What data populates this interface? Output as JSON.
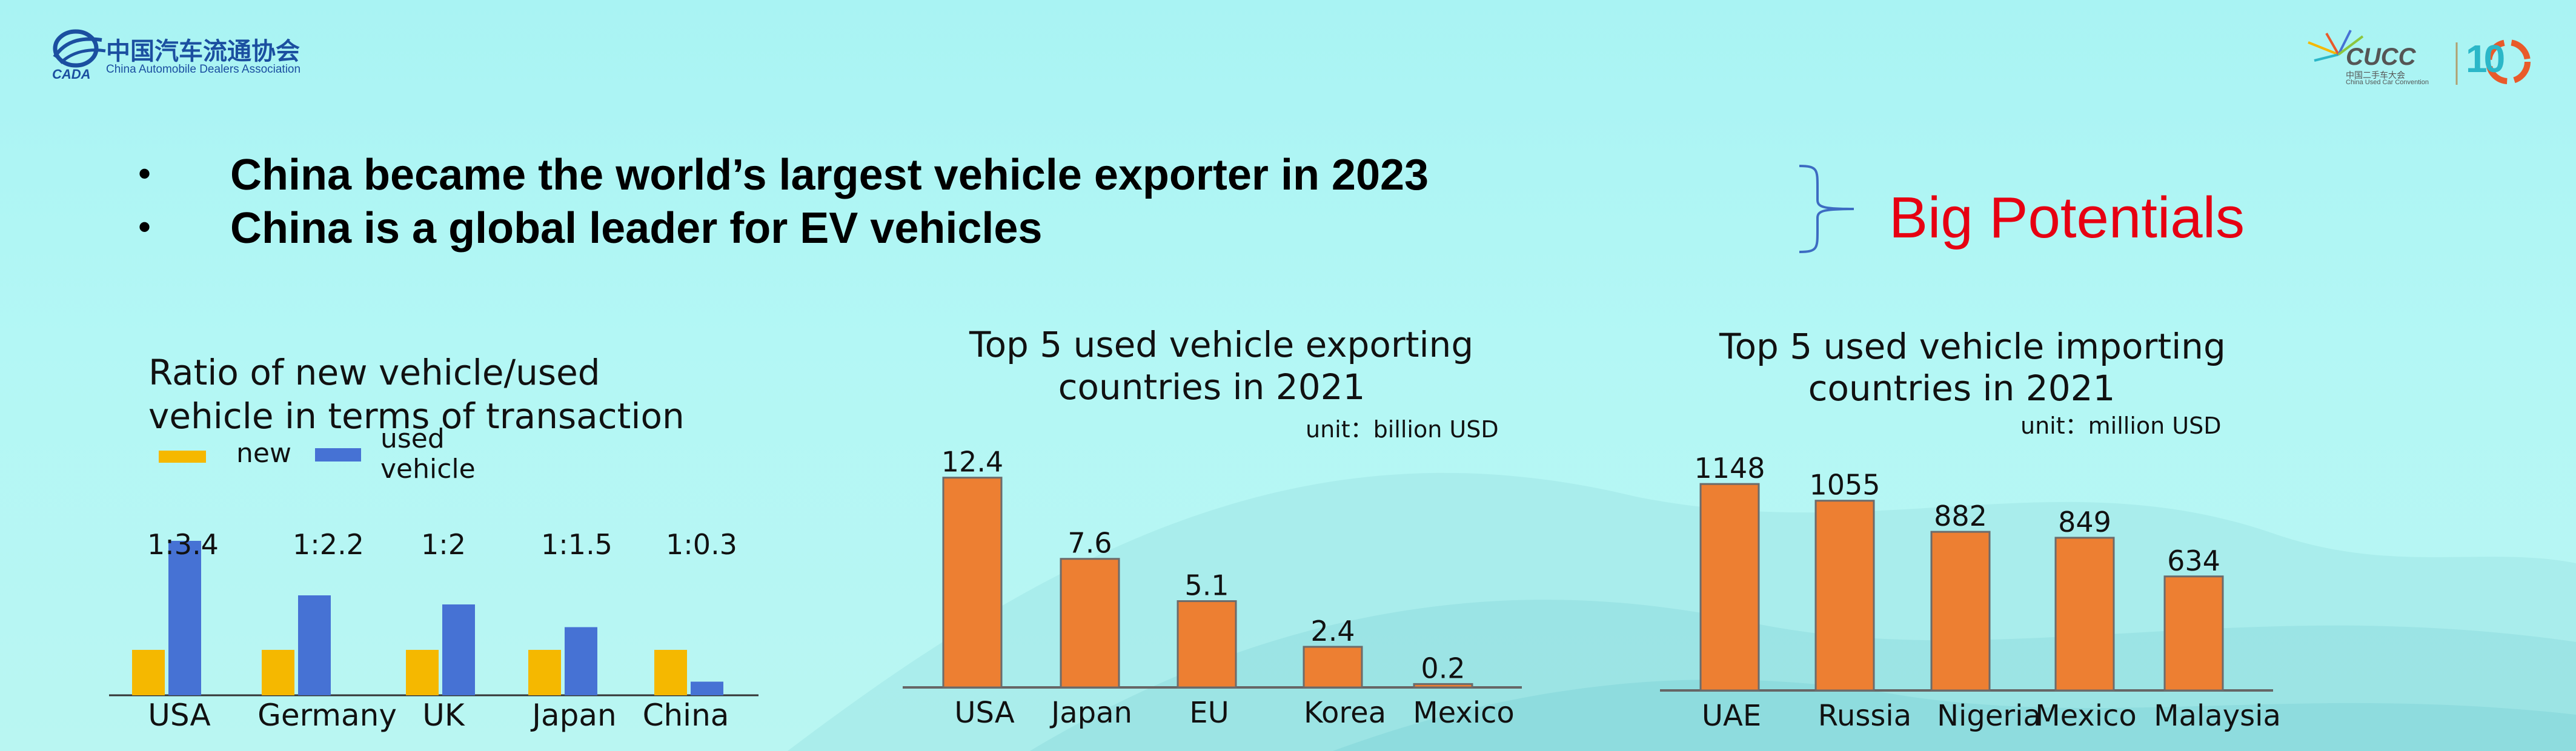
{
  "header": {
    "org_name_cn": "中国汽车流通协会",
    "org_name_en": "China Automobile Dealers Association",
    "org_logo_text": "CADA",
    "event_logo_text": "CUCC",
    "event_logo_sub_cn": "中国二手车大会",
    "event_logo_sub_en": "China Used Car Convention",
    "anniversary": "10"
  },
  "headline": {
    "bullets": [
      "China became the world’s largest vehicle exporter in 2023",
      "China is a global leader for EV vehicles"
    ],
    "bullet_symbol": "•",
    "callout": "Big Potentials"
  },
  "colors": {
    "new": "#f5b800",
    "used": "#4672d4",
    "bar": "#ed7f32",
    "accent_red": "#e60012",
    "brace": "#3d6cc2"
  },
  "chart_data": [
    {
      "type": "bar",
      "title": "Ratio of new vehicle/used vehicle in terms of transaction",
      "title_lines": [
        "Ratio of new vehicle/used",
        "vehicle in terms of transaction"
      ],
      "categories": [
        "USA",
        "Germany",
        "UK",
        "Japan",
        "China"
      ],
      "series": [
        {
          "name": "new",
          "values": [
            1,
            1,
            1,
            1,
            1
          ]
        },
        {
          "name": "used vehicle",
          "values": [
            3.4,
            2.2,
            2,
            1.5,
            0.3
          ]
        }
      ],
      "legend": [
        "new",
        "used vehicle"
      ],
      "data_labels": [
        "1:3.4",
        "1:2.2",
        "1:2",
        "1:1.5",
        "1:0.3"
      ],
      "ylim": [
        0,
        4
      ]
    },
    {
      "type": "bar",
      "title": "Top 5 used vehicle exporting countries in 2021",
      "title_lines": [
        "Top 5 used vehicle exporting",
        "countries in 2021"
      ],
      "unit": "unit：billion USD",
      "categories": [
        "USA",
        "Japan",
        "EU",
        "Korea",
        "Mexico"
      ],
      "values": [
        12.4,
        7.6,
        5.1,
        2.4,
        0.2
      ],
      "ylim": [
        0,
        14
      ]
    },
    {
      "type": "bar",
      "title": "Top 5 used vehicle importing countries in 2021",
      "title_lines": [
        "Top 5 used vehicle importing",
        "countries in 2021"
      ],
      "unit": "unit：million USD",
      "categories": [
        "UAE",
        "Russia",
        "Nigeria",
        "Mexico",
        "Malaysia"
      ],
      "values": [
        1148,
        1055,
        882,
        849,
        634
      ],
      "ylim": [
        0,
        1300
      ]
    }
  ]
}
